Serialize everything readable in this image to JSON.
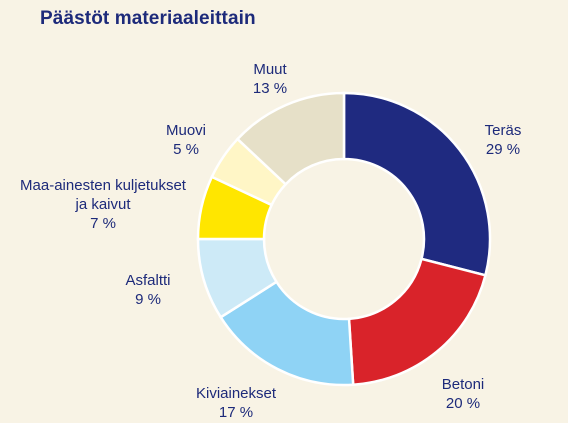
{
  "title": "Päästöt materiaaleittain",
  "chart_data": {
    "type": "pie",
    "variant": "donut",
    "title": "Päästöt materiaaleittain",
    "slices": [
      {
        "label": "Teräs",
        "value": 29,
        "value_label": "29 %",
        "color": "#1f2a80"
      },
      {
        "label": "Betoni",
        "value": 20,
        "value_label": "20 %",
        "color": "#d9232a"
      },
      {
        "label": "Kiviainekset",
        "value": 17,
        "value_label": "17 %",
        "color": "#8fd3f5"
      },
      {
        "label": "Asfaltti",
        "value": 9,
        "value_label": "9 %",
        "color": "#cdeaf7"
      },
      {
        "label": "Maa-ainesten kuljetukset ja kaivut",
        "value": 7,
        "value_label": "7 %",
        "color": "#ffe600"
      },
      {
        "label": "Muovi",
        "value": 5,
        "value_label": "5 %",
        "color": "#fff6c6"
      },
      {
        "label": "Muut",
        "value": 13,
        "value_label": "13 %",
        "color": "#e6e0c8"
      }
    ]
  }
}
